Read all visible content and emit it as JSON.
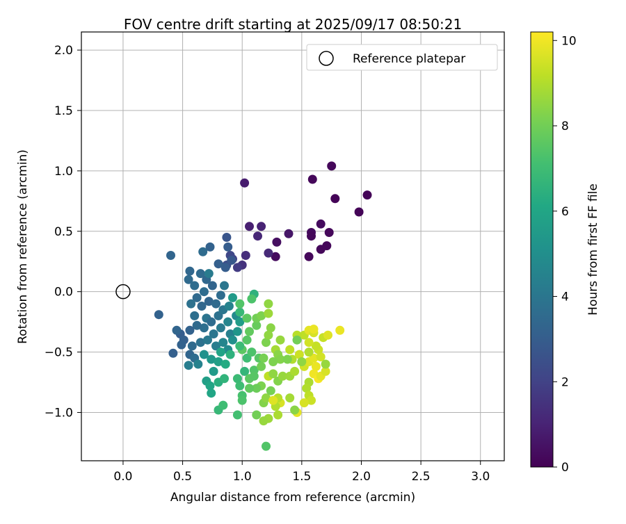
{
  "chart_data": {
    "type": "scatter",
    "title": "FOV centre drift starting at 2025/09/17 08:50:21",
    "xlabel": "Angular distance from reference (arcmin)",
    "ylabel": "Rotation from reference (arcmin)",
    "xlim": [
      -0.35,
      3.2
    ],
    "ylim": [
      -1.4,
      2.15
    ],
    "xticks": [
      0.0,
      0.5,
      1.0,
      1.5,
      2.0,
      2.5,
      3.0
    ],
    "xtick_labels": [
      "0.0",
      "0.5",
      "1.0",
      "1.5",
      "2.0",
      "2.5",
      "3.0"
    ],
    "yticks": [
      -1.0,
      -0.5,
      0.0,
      0.5,
      1.0,
      1.5,
      2.0
    ],
    "ytick_labels": [
      "−1.0",
      "−0.5",
      "0.0",
      "0.5",
      "1.0",
      "1.5",
      "2.0"
    ],
    "grid": true,
    "legend": {
      "position": "top-right",
      "entries": [
        "Reference platepar"
      ]
    },
    "reference_point": {
      "x": 0.0,
      "y": 0.0,
      "label": "Reference platepar"
    },
    "colorbar": {
      "label": "Hours from first FF file",
      "min": 0,
      "max": 10.2,
      "colormap": "viridis",
      "ticks": [
        0,
        2,
        4,
        6,
        8,
        10
      ],
      "tick_labels": [
        "0",
        "2",
        "4",
        "6",
        "8",
        "10"
      ]
    },
    "points": [
      [
        1.75,
        1.04,
        0.2
      ],
      [
        2.05,
        0.8,
        0.1
      ],
      [
        1.98,
        0.66,
        0.1
      ],
      [
        1.78,
        0.77,
        0.1
      ],
      [
        1.59,
        0.93,
        0.2
      ],
      [
        1.66,
        0.56,
        0.3
      ],
      [
        1.73,
        0.49,
        0.2
      ],
      [
        1.58,
        0.49,
        0.3
      ],
      [
        1.58,
        0.46,
        0.2
      ],
      [
        1.71,
        0.38,
        0.2
      ],
      [
        1.66,
        0.35,
        0.2
      ],
      [
        1.56,
        0.29,
        0.2
      ],
      [
        1.28,
        0.29,
        0.3
      ],
      [
        1.29,
        0.41,
        0.4
      ],
      [
        1.39,
        0.48,
        0.6
      ],
      [
        1.02,
        0.9,
        0.8
      ],
      [
        1.06,
        0.54,
        0.9
      ],
      [
        1.16,
        0.54,
        1.0
      ],
      [
        1.13,
        0.46,
        1.1
      ],
      [
        1.22,
        0.32,
        1.2
      ],
      [
        1.03,
        0.3,
        1.3
      ],
      [
        1.0,
        0.22,
        1.5
      ],
      [
        0.96,
        0.2,
        1.8
      ],
      [
        0.92,
        0.27,
        2.0
      ],
      [
        0.9,
        0.3,
        2.2
      ],
      [
        0.87,
        0.22,
        2.4
      ],
      [
        0.88,
        0.37,
        3.0
      ],
      [
        0.87,
        0.45,
        2.7
      ],
      [
        0.91,
        0.26,
        2.8
      ],
      [
        0.86,
        0.2,
        3.0
      ],
      [
        0.8,
        0.23,
        3.1
      ],
      [
        0.73,
        0.37,
        3.2
      ],
      [
        0.67,
        0.33,
        3.6
      ],
      [
        0.4,
        0.3,
        3.3
      ],
      [
        0.56,
        0.17,
        3.4
      ],
      [
        0.55,
        0.1,
        3.5
      ],
      [
        0.6,
        0.05,
        3.6
      ],
      [
        0.65,
        0.15,
        3.5
      ],
      [
        0.7,
        0.1,
        3.4
      ],
      [
        0.75,
        0.05,
        3.3
      ],
      [
        0.68,
        0.0,
        3.6
      ],
      [
        0.62,
        -0.05,
        3.5
      ],
      [
        0.57,
        -0.1,
        3.8
      ],
      [
        0.72,
        -0.08,
        3.3
      ],
      [
        0.78,
        -0.1,
        3.5
      ],
      [
        0.82,
        -0.03,
        3.6
      ],
      [
        0.85,
        0.05,
        4.0
      ],
      [
        0.72,
        0.15,
        4.2
      ],
      [
        0.66,
        -0.12,
        3.4
      ],
      [
        0.6,
        -0.2,
        3.7
      ],
      [
        0.7,
        -0.22,
        3.9
      ],
      [
        0.74,
        -0.25,
        3.6
      ],
      [
        0.8,
        -0.2,
        3.8
      ],
      [
        0.84,
        -0.15,
        4.0
      ],
      [
        0.89,
        -0.12,
        4.5
      ],
      [
        0.92,
        -0.05,
        5.5
      ],
      [
        0.95,
        -0.2,
        4.8
      ],
      [
        0.88,
        -0.25,
        4.6
      ],
      [
        0.9,
        -0.35,
        4.4
      ],
      [
        0.82,
        -0.3,
        4.2
      ],
      [
        0.76,
        -0.35,
        4.0
      ],
      [
        0.68,
        -0.3,
        3.7
      ],
      [
        0.62,
        -0.28,
        3.5
      ],
      [
        0.56,
        -0.32,
        3.2
      ],
      [
        0.48,
        -0.35,
        3.0
      ],
      [
        0.45,
        -0.32,
        3.3
      ],
      [
        0.51,
        -0.4,
        3.1
      ],
      [
        0.49,
        -0.44,
        3.2
      ],
      [
        0.58,
        -0.45,
        3.5
      ],
      [
        0.65,
        -0.42,
        3.8
      ],
      [
        0.71,
        -0.4,
        4.1
      ],
      [
        0.78,
        -0.45,
        4.3
      ],
      [
        0.84,
        -0.42,
        4.6
      ],
      [
        0.88,
        -0.48,
        4.8
      ],
      [
        0.92,
        -0.4,
        5.0
      ],
      [
        0.96,
        -0.33,
        5.3
      ],
      [
        0.98,
        -0.25,
        5.6
      ],
      [
        0.98,
        -0.17,
        6.8
      ],
      [
        1.1,
        -0.02,
        6.5
      ],
      [
        0.3,
        -0.19,
        3.2
      ],
      [
        0.42,
        -0.51,
        3.1
      ],
      [
        0.56,
        -0.52,
        3.3
      ],
      [
        0.6,
        -0.55,
        3.6
      ],
      [
        0.55,
        -0.61,
        4.3
      ],
      [
        0.63,
        -0.6,
        4.5
      ],
      [
        0.68,
        -0.52,
        5.1
      ],
      [
        0.74,
        -0.56,
        5.4
      ],
      [
        0.8,
        -0.58,
        5.7
      ],
      [
        0.82,
        -0.5,
        5.9
      ],
      [
        0.86,
        -0.6,
        6.2
      ],
      [
        0.9,
        -0.52,
        6.5
      ],
      [
        0.76,
        -0.66,
        5.5
      ],
      [
        0.7,
        -0.74,
        5.7
      ],
      [
        0.73,
        -0.78,
        6.0
      ],
      [
        0.74,
        -0.84,
        6.0
      ],
      [
        0.8,
        -0.75,
        6.4
      ],
      [
        0.85,
        -0.72,
        6.6
      ],
      [
        0.8,
        -0.98,
        6.8
      ],
      [
        0.84,
        -0.94,
        7.0
      ],
      [
        0.96,
        -1.02,
        7.1
      ],
      [
        0.98,
        -0.78,
        7.0
      ],
      [
        1.0,
        -0.86,
        7.2
      ],
      [
        1.0,
        -0.9,
        7.3
      ],
      [
        0.96,
        -0.72,
        6.9
      ],
      [
        1.02,
        -0.66,
        6.7
      ],
      [
        1.1,
        -0.65,
        7.4
      ],
      [
        1.04,
        -0.55,
        7.0
      ],
      [
        1.08,
        -0.5,
        7.3
      ],
      [
        1.14,
        -0.55,
        7.5
      ],
      [
        1.0,
        -0.48,
        7.6
      ],
      [
        1.04,
        -0.4,
        7.5
      ],
      [
        0.98,
        -0.45,
        6.9
      ],
      [
        1.06,
        -0.33,
        7.7
      ],
      [
        1.12,
        -0.28,
        7.8
      ],
      [
        1.12,
        -0.22,
        8.0
      ],
      [
        1.16,
        -0.2,
        8.2
      ],
      [
        1.04,
        -0.22,
        7.6
      ],
      [
        0.98,
        -0.1,
        7.4
      ],
      [
        1.08,
        -0.06,
        7.3
      ],
      [
        1.22,
        -0.1,
        8.5
      ],
      [
        1.22,
        -0.18,
        8.7
      ],
      [
        1.24,
        -0.3,
        8.4
      ],
      [
        1.2,
        -0.42,
        8.2
      ],
      [
        1.22,
        -0.36,
        8.5
      ],
      [
        1.32,
        -0.4,
        8.6
      ],
      [
        1.28,
        -0.48,
        8.8
      ],
      [
        1.3,
        -0.52,
        8.4
      ],
      [
        1.32,
        -0.56,
        8.3
      ],
      [
        1.26,
        -0.58,
        8.2
      ],
      [
        1.18,
        -0.55,
        8.1
      ],
      [
        1.16,
        -0.62,
        8.0
      ],
      [
        1.22,
        -0.7,
        9.2
      ],
      [
        1.26,
        -0.68,
        8.5
      ],
      [
        1.3,
        -0.74,
        8.3
      ],
      [
        1.34,
        -0.7,
        8.6
      ],
      [
        1.4,
        -0.7,
        8.7
      ],
      [
        1.44,
        -0.66,
        8.9
      ],
      [
        1.42,
        -0.56,
        9.0
      ],
      [
        1.4,
        -0.48,
        9.2
      ],
      [
        1.48,
        -0.52,
        9.4
      ],
      [
        1.52,
        -0.62,
        9.5
      ],
      [
        1.56,
        -0.58,
        9.7
      ],
      [
        1.6,
        -0.55,
        9.8
      ],
      [
        1.62,
        -0.62,
        9.9
      ],
      [
        1.6,
        -0.68,
        10.0
      ],
      [
        1.64,
        -0.72,
        10.1
      ],
      [
        1.66,
        -0.7,
        9.8
      ],
      [
        1.7,
        -0.66,
        9.6
      ],
      [
        1.66,
        -0.54,
        9.5
      ],
      [
        1.64,
        -0.48,
        9.4
      ],
      [
        1.62,
        -0.45,
        9.3
      ],
      [
        1.56,
        -0.42,
        9.5
      ],
      [
        1.52,
        -0.36,
        9.2
      ],
      [
        1.56,
        -0.32,
        9.8
      ],
      [
        1.6,
        -0.34,
        9.6
      ],
      [
        1.68,
        -0.38,
        9.3
      ],
      [
        1.72,
        -0.36,
        9.7
      ],
      [
        1.82,
        -0.32,
        9.9
      ],
      [
        1.7,
        -0.6,
        8.6
      ],
      [
        1.56,
        -0.75,
        8.9
      ],
      [
        1.54,
        -0.8,
        9.0
      ],
      [
        1.56,
        -0.86,
        9.2
      ],
      [
        1.58,
        -0.9,
        9.4
      ],
      [
        1.52,
        -0.92,
        9.6
      ],
      [
        1.46,
        -1.0,
        9.8
      ],
      [
        1.44,
        -0.98,
        8.4
      ],
      [
        1.4,
        -0.88,
        8.8
      ],
      [
        1.32,
        -0.92,
        9.6
      ],
      [
        1.3,
        -0.88,
        9.1
      ],
      [
        1.28,
        -0.95,
        9.0
      ],
      [
        1.3,
        -1.02,
        8.9
      ],
      [
        1.22,
        -1.05,
        8.7
      ],
      [
        1.18,
        -1.07,
        8.6
      ],
      [
        1.12,
        -1.02,
        8.0
      ],
      [
        1.18,
        -0.92,
        8.3
      ],
      [
        1.2,
        -0.88,
        8.5
      ],
      [
        1.26,
        -0.9,
        9.7
      ],
      [
        1.24,
        -0.82,
        8.1
      ],
      [
        1.16,
        -0.78,
        8.2
      ],
      [
        1.12,
        -0.8,
        7.9
      ],
      [
        1.06,
        -0.8,
        7.7
      ],
      [
        1.06,
        -0.72,
        7.6
      ],
      [
        1.1,
        -0.7,
        7.5
      ],
      [
        1.2,
        -1.28,
        7.4
      ],
      [
        1.46,
        -0.36,
        9.1
      ],
      [
        1.46,
        -0.4,
        8.0
      ],
      [
        1.56,
        -0.5,
        9.0
      ],
      [
        1.6,
        -0.31,
        9.9
      ],
      [
        1.5,
        -0.58,
        8.5
      ],
      [
        1.38,
        -0.56,
        8.2
      ]
    ]
  }
}
